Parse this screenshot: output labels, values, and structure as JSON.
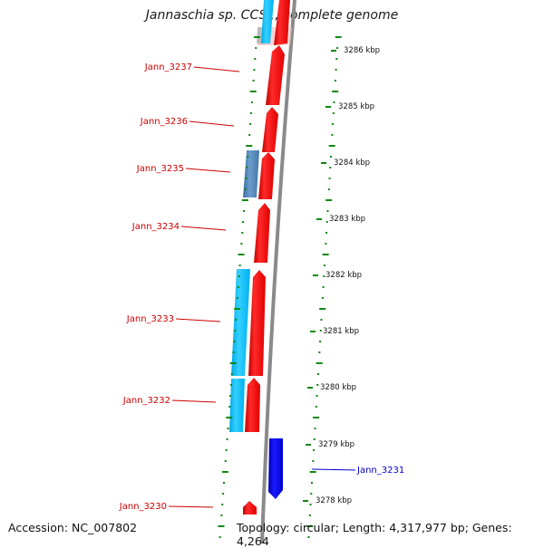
{
  "title": "Jannaschia sp. CCS1, complete genome",
  "footer": {
    "accession": "Accession: NC_007802",
    "topology": "Topology: circular; Length: 4,317,977 bp; Genes: 4,264"
  },
  "colors": {
    "forward_gene": "#ff0000",
    "reverse_gene": "#0000ee",
    "feature_light": "#00bfff",
    "feature_steel": "#4a7fb5",
    "backbone": "#888888",
    "ruler": "#118811",
    "label_forward": "#cc0000",
    "label_reverse": "#0000cc"
  },
  "ruler": {
    "unit": "kbp",
    "tick_labels": [
      "3286 kbp",
      "3285 kbp",
      "3284 kbp",
      "3283 kbp",
      "3282 kbp",
      "3281 kbp",
      "3280 kbp",
      "3279 kbp",
      "3278 kbp"
    ]
  },
  "genes": [
    {
      "name": "Jann_3237",
      "strand": "forward"
    },
    {
      "name": "Jann_3236",
      "strand": "forward"
    },
    {
      "name": "Jann_3235",
      "strand": "forward"
    },
    {
      "name": "Jann_3234",
      "strand": "forward"
    },
    {
      "name": "Jann_3233",
      "strand": "forward"
    },
    {
      "name": "Jann_3232",
      "strand": "forward"
    },
    {
      "name": "Jann_3231",
      "strand": "reverse"
    },
    {
      "name": "Jann_3230",
      "strand": "forward"
    }
  ]
}
